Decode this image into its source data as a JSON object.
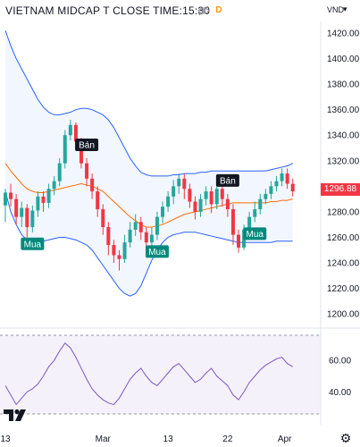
{
  "header": {
    "title": "VIETNAM MIDCAP T CLOSE TIME:15:30",
    "badge_letter": "D",
    "eye_icon": "eye-off-icon",
    "currency": "VND",
    "chevron": "▾"
  },
  "price_axis": {
    "ticks": [
      "1420.00",
      "1400.00",
      "1380.00",
      "1360.00",
      "1340.00",
      "1320.00",
      "1280.00",
      "1260.00",
      "1240.00",
      "1220.00",
      "1200.00"
    ]
  },
  "last_price": "1296.88",
  "oscillator_axis": {
    "ticks": [
      "60.00",
      "40.00"
    ]
  },
  "date_axis": {
    "ticks": [
      "13",
      "Mar",
      "13",
      "22",
      "Apr"
    ]
  },
  "signals": {
    "buy_label": "Mua",
    "sell_label": "Bán"
  },
  "colors": {
    "up": "#26a69a",
    "down": "#f23645",
    "band": "#2962ff",
    "basis": "#ff6d00",
    "osc_line": "#7e57c2",
    "osc_bg": "#ede7f6"
  },
  "chart_data": {
    "type": "candlestick",
    "ylim": [
      1200,
      1430
    ],
    "candles": [
      [
        1285,
        1295,
        1272,
        1298
      ],
      [
        1295,
        1290,
        1284,
        1302
      ],
      [
        1290,
        1276,
        1270,
        1294
      ],
      [
        1276,
        1283,
        1268,
        1288
      ],
      [
        1283,
        1268,
        1260,
        1286
      ],
      [
        1268,
        1281,
        1264,
        1285
      ],
      [
        1281,
        1292,
        1276,
        1296
      ],
      [
        1292,
        1287,
        1280,
        1296
      ],
      [
        1287,
        1298,
        1283,
        1302
      ],
      [
        1298,
        1304,
        1293,
        1308
      ],
      [
        1304,
        1318,
        1300,
        1322
      ],
      [
        1318,
        1340,
        1314,
        1344
      ],
      [
        1340,
        1348,
        1336,
        1352
      ],
      [
        1348,
        1335,
        1328,
        1350
      ],
      [
        1335,
        1318,
        1314,
        1338
      ],
      [
        1318,
        1306,
        1300,
        1322
      ],
      [
        1306,
        1296,
        1290,
        1310
      ],
      [
        1296,
        1282,
        1276,
        1300
      ],
      [
        1282,
        1268,
        1262,
        1286
      ],
      [
        1268,
        1254,
        1246,
        1272
      ],
      [
        1254,
        1246,
        1240,
        1258
      ],
      [
        1246,
        1243,
        1234,
        1250
      ],
      [
        1243,
        1256,
        1240,
        1262
      ],
      [
        1256,
        1266,
        1252,
        1272
      ],
      [
        1266,
        1272,
        1261,
        1278
      ],
      [
        1272,
        1264,
        1258,
        1276
      ],
      [
        1264,
        1256,
        1250,
        1268
      ],
      [
        1256,
        1262,
        1252,
        1268
      ],
      [
        1262,
        1276,
        1258,
        1280
      ],
      [
        1276,
        1284,
        1271,
        1288
      ],
      [
        1284,
        1292,
        1280,
        1296
      ],
      [
        1292,
        1300,
        1286,
        1305
      ],
      [
        1300,
        1306,
        1294,
        1310
      ],
      [
        1306,
        1298,
        1290,
        1310
      ],
      [
        1298,
        1288,
        1283,
        1302
      ],
      [
        1288,
        1280,
        1274,
        1292
      ],
      [
        1280,
        1290,
        1276,
        1294
      ],
      [
        1290,
        1296,
        1285,
        1300
      ],
      [
        1296,
        1286,
        1279,
        1300
      ],
      [
        1286,
        1298,
        1282,
        1302
      ],
      [
        1298,
        1290,
        1284,
        1302
      ],
      [
        1290,
        1282,
        1276,
        1294
      ],
      [
        1282,
        1262,
        1254,
        1286
      ],
      [
        1262,
        1252,
        1248,
        1266
      ],
      [
        1252,
        1266,
        1250,
        1270
      ],
      [
        1266,
        1276,
        1262,
        1280
      ],
      [
        1276,
        1282,
        1272,
        1288
      ],
      [
        1282,
        1290,
        1278,
        1294
      ],
      [
        1290,
        1294,
        1286,
        1298
      ],
      [
        1294,
        1300,
        1290,
        1304
      ],
      [
        1300,
        1304,
        1296,
        1308
      ],
      [
        1304,
        1310,
        1300,
        1314
      ],
      [
        1310,
        1302,
        1298,
        1314
      ],
      [
        1302,
        1296,
        1292,
        1306
      ]
    ],
    "upper_band": [
      1422,
      1410,
      1400,
      1392,
      1384,
      1376,
      1368,
      1362,
      1358,
      1356,
      1356,
      1357,
      1358,
      1360,
      1361,
      1361,
      1360,
      1358,
      1356,
      1352,
      1346,
      1338,
      1330,
      1322,
      1316,
      1311,
      1309,
      1308,
      1308,
      1308,
      1308,
      1309,
      1309,
      1310,
      1310,
      1310,
      1311,
      1311,
      1312,
      1312,
      1312,
      1312,
      1312,
      1312,
      1312,
      1312,
      1312,
      1312,
      1312,
      1313,
      1314,
      1315,
      1316,
      1318
    ],
    "basis": [
      1318,
      1312,
      1307,
      1302,
      1298,
      1296,
      1295,
      1295,
      1296,
      1297,
      1298,
      1299,
      1300,
      1301,
      1302,
      1301,
      1300,
      1298,
      1296,
      1292,
      1288,
      1284,
      1280,
      1276,
      1273,
      1270,
      1268,
      1268,
      1269,
      1270,
      1272,
      1274,
      1276,
      1278,
      1279,
      1280,
      1281,
      1282,
      1283,
      1284,
      1285,
      1286,
      1287,
      1287,
      1287,
      1287,
      1287,
      1287,
      1287,
      1288,
      1288,
      1289,
      1289,
      1290
    ],
    "lower_band": [
      1296,
      1280,
      1270,
      1262,
      1258,
      1256,
      1256,
      1257,
      1258,
      1259,
      1260,
      1260,
      1259,
      1258,
      1256,
      1254,
      1250,
      1244,
      1238,
      1232,
      1226,
      1220,
      1216,
      1214,
      1216,
      1222,
      1232,
      1242,
      1250,
      1256,
      1260,
      1262,
      1263,
      1264,
      1264,
      1264,
      1263,
      1262,
      1261,
      1260,
      1259,
      1258,
      1257,
      1256,
      1256,
      1256,
      1256,
      1256,
      1256,
      1256,
      1257,
      1257,
      1257,
      1257
    ],
    "oscillator": [
      44,
      38,
      32,
      36,
      40,
      42,
      45,
      50,
      56,
      60,
      66,
      71,
      68,
      62,
      55,
      48,
      42,
      38,
      35,
      33,
      32,
      36,
      42,
      48,
      52,
      55,
      50,
      46,
      44,
      48,
      52,
      56,
      58,
      54,
      50,
      46,
      48,
      52,
      55,
      50,
      47,
      44,
      38,
      35,
      40,
      46,
      50,
      54,
      57,
      59,
      61,
      62,
      58,
      56
    ],
    "oscillator_ylim": [
      26,
      76
    ],
    "buy_signals": [
      5,
      28,
      46
    ],
    "sell_signals": [
      15,
      41
    ]
  }
}
